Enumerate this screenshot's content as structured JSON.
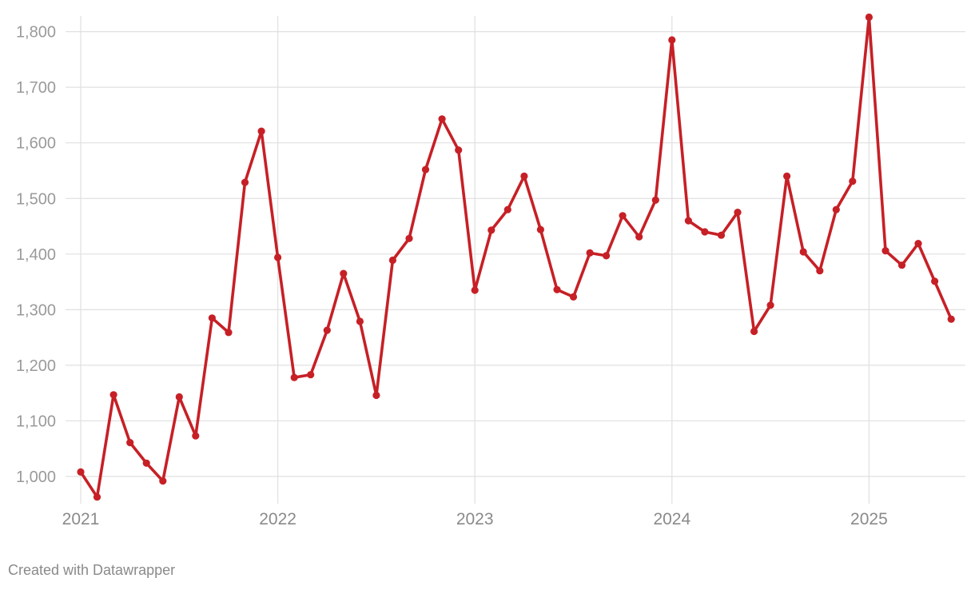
{
  "chart_data": {
    "type": "line",
    "x_unit": "month",
    "x_start": "2021-01",
    "x_tick_labels": [
      "2021",
      "2022",
      "2023",
      "2024",
      "2025"
    ],
    "y_tick_labels": [
      "1,000",
      "1,100",
      "1,200",
      "1,300",
      "1,400",
      "1,500",
      "1,600",
      "1,700",
      "1,800"
    ],
    "ylim": [
      962,
      1830
    ],
    "grid": true,
    "series": [
      {
        "color": "#c62026",
        "values": [
          1008,
          963,
          1147,
          1061,
          1024,
          992,
          1143,
          1073,
          1285,
          1259,
          1529,
          1621,
          1394,
          1178,
          1183,
          1263,
          1365,
          1279,
          1146,
          1389,
          1428,
          1552,
          1643,
          1587,
          1335,
          1443,
          1480,
          1540,
          1444,
          1336,
          1323,
          1402,
          1397,
          1469,
          1431,
          1497,
          1785,
          1460,
          1440,
          1434,
          1475,
          1261,
          1308,
          1540,
          1404,
          1370,
          1480,
          1531,
          1826,
          1406,
          1380,
          1419,
          1351,
          1283
        ]
      }
    ]
  },
  "credit": "Created with Datawrapper",
  "colors": {
    "line": "#c62026",
    "grid": "#e0e0e0",
    "tick_text": "#9a9a9a"
  }
}
